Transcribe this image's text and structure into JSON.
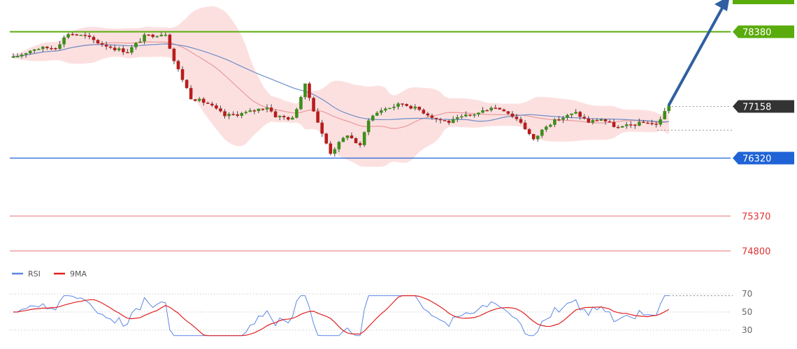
{
  "chart_data": {
    "type": "candlestick",
    "trend_arrow": "up",
    "price_levels": [
      {
        "label": "78380",
        "value": 78380,
        "color": "#5aab0c",
        "style": "badge"
      },
      {
        "label": "77158",
        "value": 77158,
        "color": "#333333",
        "style": "badge"
      },
      {
        "label": "76320",
        "value": 76320,
        "color": "#1f63d6",
        "style": "badge"
      },
      {
        "label": "75370",
        "value": 75370,
        "color": "#e03333",
        "style": "text"
      },
      {
        "label": "74800",
        "value": 74800,
        "color": "#e03333",
        "style": "text"
      }
    ],
    "series_colors": {
      "bullish": "#3d8e1a",
      "bearish": "#b81c1c",
      "bollinger_band": "#f9c7c7",
      "ma_slow": "#6d8ec8",
      "ma_fast": "#e99a9a"
    },
    "indicator": {
      "legend": [
        {
          "name": "RSI",
          "color": "#5b86e5"
        },
        {
          "name": "9MA",
          "color": "#e02020"
        }
      ],
      "ticks": [
        "70",
        "50",
        "30"
      ]
    }
  }
}
